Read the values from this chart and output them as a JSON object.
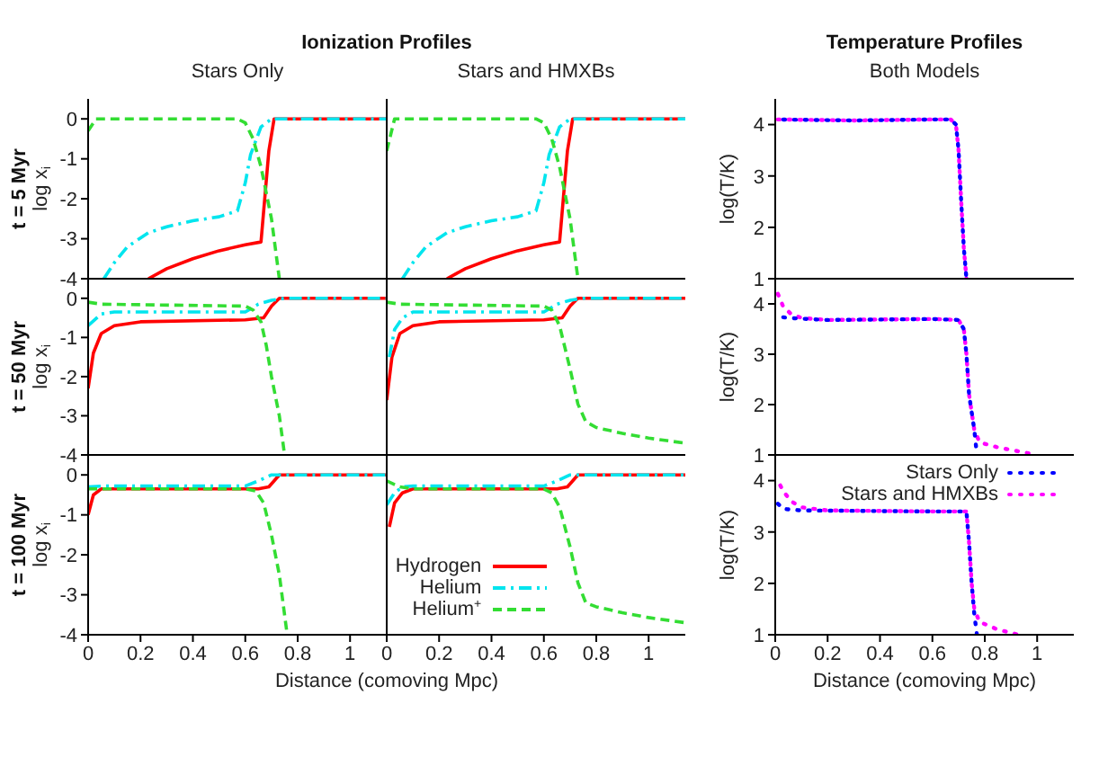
{
  "chart_data": [
    {
      "type": "line",
      "title": "Ionization Profiles",
      "subtitle": "Stars Only",
      "ylabel": "log x$_{i}$",
      "annotations": [
        "t = 5 Myr"
      ],
      "xlim": [
        0,
        1.14
      ],
      "ylim": [
        -4,
        0.5
      ],
      "xticks": [
        0,
        0.2,
        0.4,
        0.6,
        0.8,
        1
      ],
      "yticks": [
        -4,
        -3,
        -2,
        -1,
        0
      ],
      "tick_labels": "y",
      "series": [
        {
          "color": "#ff0000",
          "line_style": "solid",
          "x": [
            0.23,
            0.3,
            0.4,
            0.5,
            0.6,
            0.66,
            0.69,
            0.71,
            1.14
          ],
          "values": [
            -4,
            -3.75,
            -3.5,
            -3.3,
            -3.15,
            -3.08,
            -0.8,
            0,
            0
          ]
        },
        {
          "color": "#00e5ee",
          "line_style": "dashdot",
          "x": [
            0.06,
            0.1,
            0.15,
            0.23,
            0.3,
            0.4,
            0.5,
            0.57,
            0.6,
            0.62,
            0.66,
            0.7,
            1.14
          ],
          "values": [
            -4,
            -3.6,
            -3.2,
            -2.85,
            -2.7,
            -2.55,
            -2.45,
            -2.3,
            -1.6,
            -0.9,
            -0.2,
            0,
            0
          ]
        },
        {
          "color": "#33dd33",
          "line_style": "dashed",
          "x": [
            0,
            0.03,
            0.57,
            0.6,
            0.63,
            0.66,
            0.7,
            0.73
          ],
          "values": [
            -0.3,
            0,
            0,
            -0.1,
            -0.5,
            -1.2,
            -2.5,
            -4
          ]
        }
      ]
    },
    {
      "type": "line",
      "subtitle": "Stars and HMXBs",
      "xlim": [
        0,
        1.14
      ],
      "ylim": [
        -4,
        0.5
      ],
      "xticks": [
        0,
        0.2,
        0.4,
        0.6,
        0.8,
        1
      ],
      "yticks": [
        -4,
        -3,
        -2,
        -1,
        0
      ],
      "tick_labels": false,
      "series": [
        {
          "color": "#ff0000",
          "line_style": "solid",
          "x": [
            0.23,
            0.3,
            0.4,
            0.5,
            0.6,
            0.66,
            0.69,
            0.71,
            1.14
          ],
          "values": [
            -4,
            -3.75,
            -3.5,
            -3.3,
            -3.15,
            -3.08,
            -0.8,
            0,
            0
          ]
        },
        {
          "color": "#00e5ee",
          "line_style": "dashdot",
          "x": [
            0.06,
            0.1,
            0.15,
            0.23,
            0.3,
            0.4,
            0.5,
            0.57,
            0.6,
            0.62,
            0.66,
            0.7,
            1.14
          ],
          "values": [
            -4,
            -3.6,
            -3.2,
            -2.85,
            -2.7,
            -2.55,
            -2.45,
            -2.3,
            -1.6,
            -0.9,
            -0.2,
            0,
            0
          ]
        },
        {
          "color": "#33dd33",
          "line_style": "dashed",
          "x": [
            0,
            0.03,
            0.57,
            0.6,
            0.63,
            0.66,
            0.7,
            0.73
          ],
          "values": [
            -0.8,
            0,
            0,
            -0.1,
            -0.5,
            -1.2,
            -2.5,
            -4
          ]
        }
      ]
    },
    {
      "type": "line",
      "title": "Temperature Profiles",
      "subtitle": "Both Models",
      "ylabel": "log(T/K)",
      "xlim": [
        0,
        1.14
      ],
      "ylim": [
        1,
        4.5
      ],
      "xticks": [
        0,
        0.2,
        0.4,
        0.6,
        0.8,
        1
      ],
      "yticks": [
        1,
        2,
        3,
        4
      ],
      "tick_labels": "y",
      "series": [
        {
          "color": "#ff00ff",
          "line_style": "dotted",
          "x": [
            0.01,
            0.3,
            0.6,
            0.67,
            0.69,
            0.7,
            0.71,
            0.72,
            0.73
          ],
          "values": [
            4.1,
            4.08,
            4.1,
            4.1,
            4,
            3.5,
            2.5,
            1.6,
            1
          ]
        },
        {
          "color": "#0000ff",
          "line_style": "dotted",
          "x": [
            0.01,
            0.3,
            0.6,
            0.67,
            0.69,
            0.7,
            0.71,
            0.72,
            0.73
          ],
          "values": [
            4.1,
            4.08,
            4.1,
            4.1,
            4,
            3.5,
            2.5,
            1.6,
            1
          ]
        }
      ]
    },
    {
      "type": "line",
      "ylabel": "log x$_{i}$",
      "annotations": [
        "t = 50 Myr"
      ],
      "xlim": [
        0,
        1.14
      ],
      "ylim": [
        -4,
        0.5
      ],
      "xticks": [
        0,
        0.2,
        0.4,
        0.6,
        0.8,
        1
      ],
      "yticks": [
        -4,
        -3,
        -2,
        -1,
        0
      ],
      "tick_labels": "y",
      "series": [
        {
          "color": "#ff0000",
          "line_style": "solid",
          "x": [
            0,
            0.02,
            0.05,
            0.1,
            0.2,
            0.6,
            0.67,
            0.7,
            0.73,
            1.14
          ],
          "values": [
            -2.3,
            -1.4,
            -0.9,
            -0.7,
            -0.6,
            -0.55,
            -0.5,
            -0.2,
            0,
            0
          ]
        },
        {
          "color": "#00e5ee",
          "line_style": "dashdot",
          "x": [
            0,
            0.05,
            0.1,
            0.6,
            0.65,
            0.7,
            0.75,
            1.14
          ],
          "values": [
            -0.7,
            -0.4,
            -0.35,
            -0.35,
            -0.15,
            -0.05,
            0,
            0
          ]
        },
        {
          "color": "#33dd33",
          "line_style": "dashed",
          "x": [
            0,
            0.05,
            0.6,
            0.63,
            0.66,
            0.68,
            0.7,
            0.73,
            0.75
          ],
          "values": [
            -0.1,
            -0.15,
            -0.2,
            -0.3,
            -0.6,
            -1.2,
            -2,
            -3,
            -4
          ]
        }
      ]
    },
    {
      "type": "line",
      "xlim": [
        0,
        1.14
      ],
      "ylim": [
        -4,
        0.5
      ],
      "xticks": [
        0,
        0.2,
        0.4,
        0.6,
        0.8,
        1
      ],
      "yticks": [
        -4,
        -3,
        -2,
        -1,
        0
      ],
      "tick_labels": false,
      "series": [
        {
          "color": "#ff0000",
          "line_style": "solid",
          "x": [
            0,
            0.02,
            0.05,
            0.1,
            0.2,
            0.6,
            0.67,
            0.7,
            0.73,
            1.14
          ],
          "values": [
            -2.6,
            -1.5,
            -0.9,
            -0.7,
            -0.6,
            -0.55,
            -0.5,
            -0.2,
            0,
            0
          ]
        },
        {
          "color": "#00e5ee",
          "line_style": "dashdot",
          "x": [
            0.01,
            0.03,
            0.06,
            0.1,
            0.6,
            0.65,
            0.7,
            0.75,
            1.14
          ],
          "values": [
            -1.5,
            -0.8,
            -0.5,
            -0.35,
            -0.35,
            -0.15,
            -0.05,
            0,
            0
          ]
        },
        {
          "color": "#33dd33",
          "line_style": "dashed",
          "x": [
            0,
            0.05,
            0.6,
            0.63,
            0.66,
            0.7,
            0.73,
            0.76,
            0.8,
            0.9,
            1,
            1.14
          ],
          "values": [
            -0.1,
            -0.15,
            -0.2,
            -0.3,
            -0.7,
            -1.8,
            -2.7,
            -3.15,
            -3.3,
            -3.45,
            -3.57,
            -3.7
          ]
        }
      ]
    },
    {
      "type": "line",
      "ylabel": "log(T/K)",
      "xlim": [
        0,
        1.14
      ],
      "ylim": [
        1,
        4.5
      ],
      "xticks": [
        0,
        0.2,
        0.4,
        0.6,
        0.8,
        1
      ],
      "yticks": [
        1,
        2,
        3,
        4
      ],
      "tick_labels": "y",
      "series": [
        {
          "color": "#ff00ff",
          "line_style": "dotted",
          "x": [
            0.01,
            0.03,
            0.06,
            0.1,
            0.2,
            0.6,
            0.7,
            0.72,
            0.73,
            0.74,
            0.76,
            0.78,
            0.85,
            0.95,
            1
          ],
          "values": [
            4.2,
            3.95,
            3.8,
            3.72,
            3.68,
            3.7,
            3.68,
            3.5,
            3,
            2.2,
            1.5,
            1.25,
            1.15,
            1.05,
            1
          ]
        },
        {
          "color": "#0000ff",
          "line_style": "dotted",
          "x": [
            0.01,
            0.05,
            0.2,
            0.6,
            0.7,
            0.72,
            0.73,
            0.74,
            0.76,
            0.77
          ],
          "values": [
            3.75,
            3.72,
            3.68,
            3.7,
            3.68,
            3.5,
            3,
            2.2,
            1.5,
            1
          ]
        }
      ]
    },
    {
      "type": "line",
      "xlabel": "Distance (comoving Mpc)",
      "ylabel": "log x$_{i}$",
      "annotations": [
        "t = 100 Myr"
      ],
      "xlim": [
        0,
        1.14
      ],
      "ylim": [
        -4,
        0.5
      ],
      "xticks": [
        0,
        0.2,
        0.4,
        0.6,
        0.8,
        1
      ],
      "yticks": [
        -4,
        -3,
        -2,
        -1,
        0
      ],
      "series": [
        {
          "color": "#ff0000",
          "line_style": "solid",
          "x": [
            0,
            0.02,
            0.05,
            0.65,
            0.69,
            0.73,
            1.14
          ],
          "values": [
            -1,
            -0.5,
            -0.35,
            -0.35,
            -0.3,
            0,
            0
          ]
        },
        {
          "color": "#00e5ee",
          "line_style": "dashdot",
          "x": [
            0,
            0.05,
            0.6,
            0.65,
            0.7,
            1.14
          ],
          "values": [
            -0.3,
            -0.28,
            -0.28,
            -0.15,
            0,
            0
          ]
        },
        {
          "color": "#33dd33",
          "line_style": "dashed",
          "x": [
            0,
            0.6,
            0.64,
            0.67,
            0.7,
            0.73,
            0.76
          ],
          "values": [
            -0.35,
            -0.35,
            -0.4,
            -0.7,
            -1.5,
            -2.5,
            -4
          ]
        }
      ]
    },
    {
      "type": "line",
      "xlim": [
        0,
        1.14
      ],
      "ylim": [
        -4,
        0.5
      ],
      "xticks": [
        0,
        0.2,
        0.4,
        0.6,
        0.8,
        1
      ],
      "yticks": [
        -4,
        -3,
        -2,
        -1,
        0
      ],
      "tick_labels": "x",
      "legend": "bottom left",
      "series": [
        {
          "name": "Hydrogen",
          "color": "#ff0000",
          "line_style": "solid",
          "x": [
            0.01,
            0.03,
            0.06,
            0.1,
            0.65,
            0.69,
            0.73,
            1.14
          ],
          "values": [
            -1.3,
            -0.7,
            -0.45,
            -0.35,
            -0.35,
            -0.3,
            0,
            0
          ]
        },
        {
          "name": "Helium",
          "color": "#00e5ee",
          "line_style": "dashdot",
          "x": [
            0,
            0.03,
            0.06,
            0.1,
            0.6,
            0.65,
            0.7,
            1.14
          ],
          "values": [
            -0.75,
            -0.45,
            -0.3,
            -0.28,
            -0.28,
            -0.15,
            0,
            0
          ]
        },
        {
          "name": "Helium$^{+}$",
          "color": "#33dd33",
          "line_style": "dashed",
          "x": [
            0,
            0.05,
            0.1,
            0.6,
            0.63,
            0.66,
            0.7,
            0.73,
            0.76,
            0.8,
            0.9,
            1,
            1.14
          ],
          "values": [
            -0.15,
            -0.3,
            -0.35,
            -0.35,
            -0.45,
            -0.8,
            -1.8,
            -2.7,
            -3.2,
            -3.3,
            -3.45,
            -3.57,
            -3.7
          ]
        }
      ]
    },
    {
      "type": "line",
      "xlabel": "Distance (comoving Mpc)",
      "ylabel": "log(T/K)",
      "xlim": [
        0,
        1.14
      ],
      "ylim": [
        1,
        4.5
      ],
      "xticks": [
        0,
        0.2,
        0.4,
        0.6,
        0.8,
        1
      ],
      "yticks": [
        1,
        2,
        3,
        4
      ],
      "legend": "top right",
      "series": [
        {
          "name": "Stars Only",
          "color": "#0000ff",
          "line_style": "dotted",
          "x": [
            0.01,
            0.03,
            0.1,
            0.6,
            0.73,
            0.74,
            0.75,
            0.76,
            0.77
          ],
          "values": [
            3.55,
            3.45,
            3.42,
            3.4,
            3.4,
            2.8,
            2,
            1.4,
            1
          ]
        },
        {
          "name": "Stars and HMXBs",
          "color": "#ff00ff",
          "line_style": "dotted",
          "x": [
            0.01,
            0.03,
            0.06,
            0.1,
            0.2,
            0.6,
            0.73,
            0.74,
            0.75,
            0.76,
            0.78,
            0.85,
            0.93
          ],
          "values": [
            4,
            3.8,
            3.6,
            3.48,
            3.42,
            3.4,
            3.4,
            2.8,
            2,
            1.5,
            1.25,
            1.1,
            1
          ]
        }
      ]
    }
  ]
}
